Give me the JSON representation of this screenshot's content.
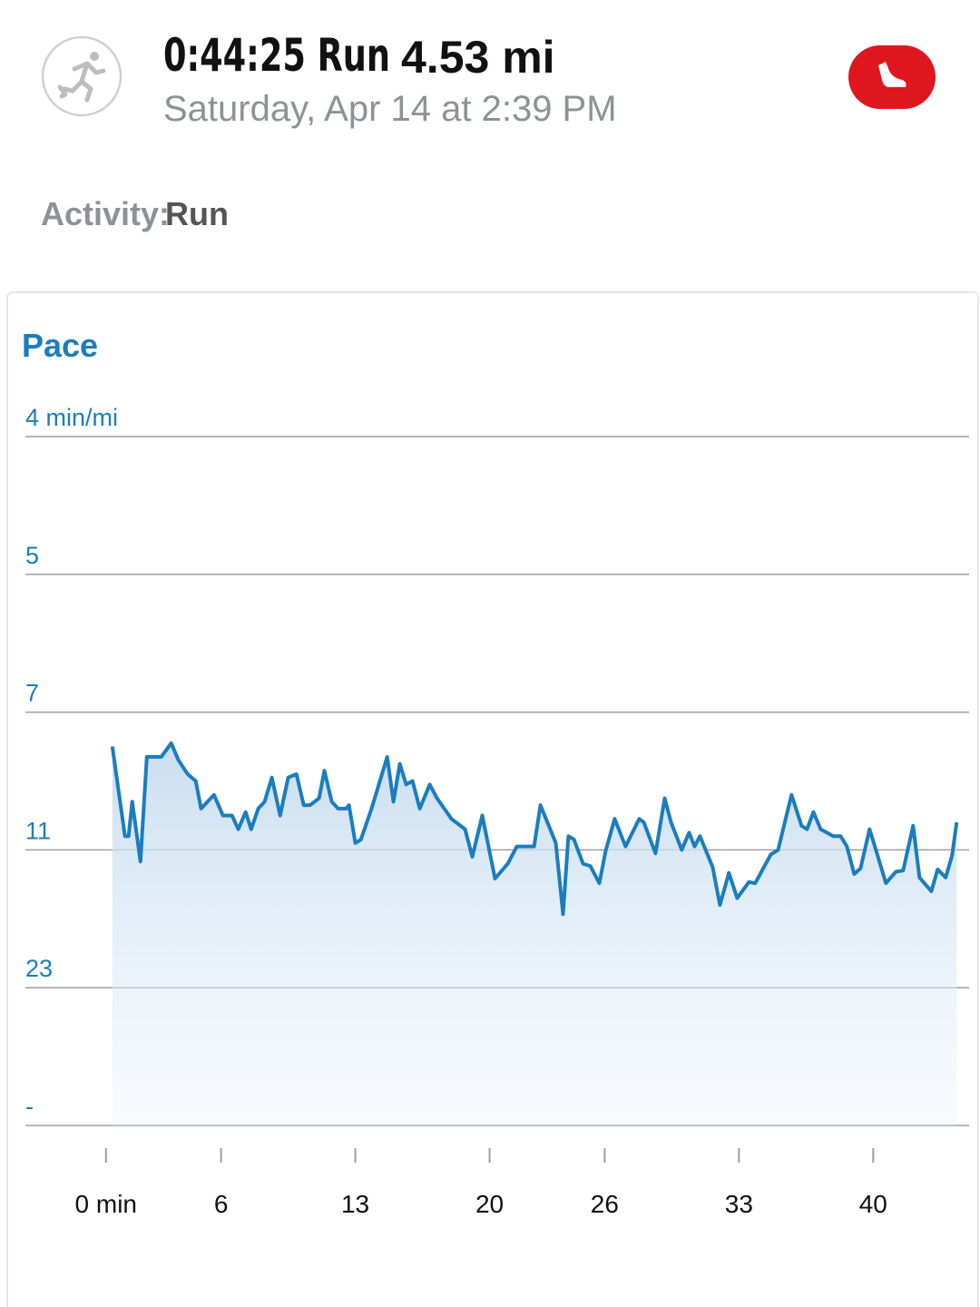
{
  "header": {
    "title": "0:44:25 Run",
    "distance": "4.53 mi",
    "subtitle": "Saturday, Apr 14 at 2:39 PM"
  },
  "activity": {
    "label": "Activity:",
    "value": "Run"
  },
  "chart_data": {
    "type": "line",
    "title": "Pace",
    "color": "#1a7dc0",
    "grid": true,
    "x": [
      0.33,
      0.99,
      1.18,
      1.37,
      1.8,
      2.13,
      2.51,
      2.88,
      3.4,
      3.78,
      4.26,
      4.68,
      4.96,
      5.63,
      6.1,
      6.57,
      6.9,
      7.28,
      7.57,
      7.94,
      8.27,
      8.65,
      9.08,
      9.5,
      9.93,
      10.31,
      10.64,
      11.11,
      11.39,
      11.77,
      12.1,
      12.53,
      12.67,
      13.0,
      13.29,
      13.85,
      14.66,
      14.99,
      15.32,
      15.65,
      15.98,
      16.36,
      16.88,
      17.26,
      18.01,
      18.72,
      19.1,
      19.62,
      20.28,
      20.95,
      21.42,
      22.08,
      22.32,
      22.65,
      23.45,
      23.83,
      24.11,
      24.4,
      24.87,
      25.25,
      25.72,
      26.05,
      26.52,
      27.09,
      27.8,
      28.04,
      28.65,
      29.13,
      29.46,
      30.02,
      30.4,
      30.69,
      30.97,
      31.63,
      32.01,
      32.48,
      32.91,
      33.52,
      33.85,
      34.66,
      35.04,
      35.74,
      36.26,
      36.55,
      36.88,
      37.26,
      37.92,
      38.3,
      38.63,
      39.01,
      39.34,
      39.81,
      40.14,
      40.66,
      41.18,
      41.56,
      42.08,
      42.41,
      43.03,
      43.36,
      43.78,
      44.11,
      44.35
    ],
    "values": [
      8.0,
      10.6,
      10.6,
      9.6,
      12.0,
      8.3,
      8.3,
      8.3,
      7.9,
      8.4,
      8.8,
      9.0,
      9.8,
      9.4,
      10.0,
      10.0,
      10.4,
      9.9,
      10.4,
      9.8,
      9.6,
      8.9,
      10.0,
      8.9,
      8.8,
      9.7,
      9.7,
      9.5,
      8.7,
      9.6,
      9.8,
      9.8,
      9.7,
      10.8,
      10.7,
      9.8,
      8.3,
      9.6,
      8.5,
      9.1,
      9.0,
      9.8,
      9.1,
      9.5,
      10.1,
      10.4,
      11.6,
      10.0,
      13.5,
      12.2,
      10.9,
      10.9,
      10.9,
      9.7,
      10.8,
      16.6,
      10.6,
      10.7,
      12.2,
      12.4,
      13.9,
      11.1,
      10.1,
      10.9,
      10.1,
      10.2,
      11.3,
      9.5,
      10.2,
      11.0,
      10.5,
      10.9,
      10.6,
      12.5,
      15.8,
      13.0,
      15.2,
      13.8,
      13.9,
      11.4,
      11.0,
      9.4,
      10.3,
      10.4,
      9.9,
      10.4,
      10.6,
      10.6,
      10.9,
      13.1,
      12.6,
      10.4,
      11.0,
      13.9,
      12.9,
      12.8,
      10.3,
      13.4,
      14.6,
      12.7,
      13.4,
      11.5,
      10.2
    ],
    "xlim": [
      -4.2,
      45
    ],
    "xticks": [
      {
        "value": 0,
        "label": "0 min"
      },
      6,
      13,
      20,
      26,
      33,
      40
    ],
    "yticks": [
      {
        "value": 4,
        "label": "4 min/mi"
      },
      5,
      7,
      11,
      23,
      {
        "value": null,
        "label": "-"
      }
    ]
  }
}
